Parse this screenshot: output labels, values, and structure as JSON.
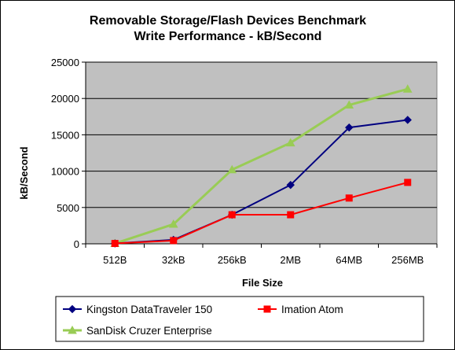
{
  "chart_data": {
    "type": "line",
    "title_line1": "Removable Storage/Flash Devices Benchmark",
    "title_line2": "Write Performance - kB/Second",
    "xlabel": "File Size",
    "ylabel": "kB/Second",
    "categories": [
      "512B",
      "32kB",
      "256kB",
      "2MB",
      "64MB",
      "256MB"
    ],
    "ylim": [
      0,
      25000
    ],
    "yticks": [
      0,
      5000,
      10000,
      15000,
      20000,
      25000
    ],
    "grid": true,
    "legend_position": "bottom",
    "plot_background": "#c0c0c0",
    "series": [
      {
        "name": "Kingston DataTraveler  150",
        "color": "#000080",
        "marker": "diamond",
        "values": [
          50,
          550,
          4000,
          8100,
          16000,
          17050
        ]
      },
      {
        "name": "Imation Atom",
        "color": "#ff0000",
        "marker": "square",
        "values": [
          50,
          450,
          4000,
          4000,
          6300,
          8450
        ]
      },
      {
        "name": "SanDisk Cruzer Enterprise",
        "color": "#99cc55",
        "marker": "triangle",
        "values": [
          50,
          2700,
          10200,
          13900,
          19100,
          21300
        ]
      }
    ]
  }
}
